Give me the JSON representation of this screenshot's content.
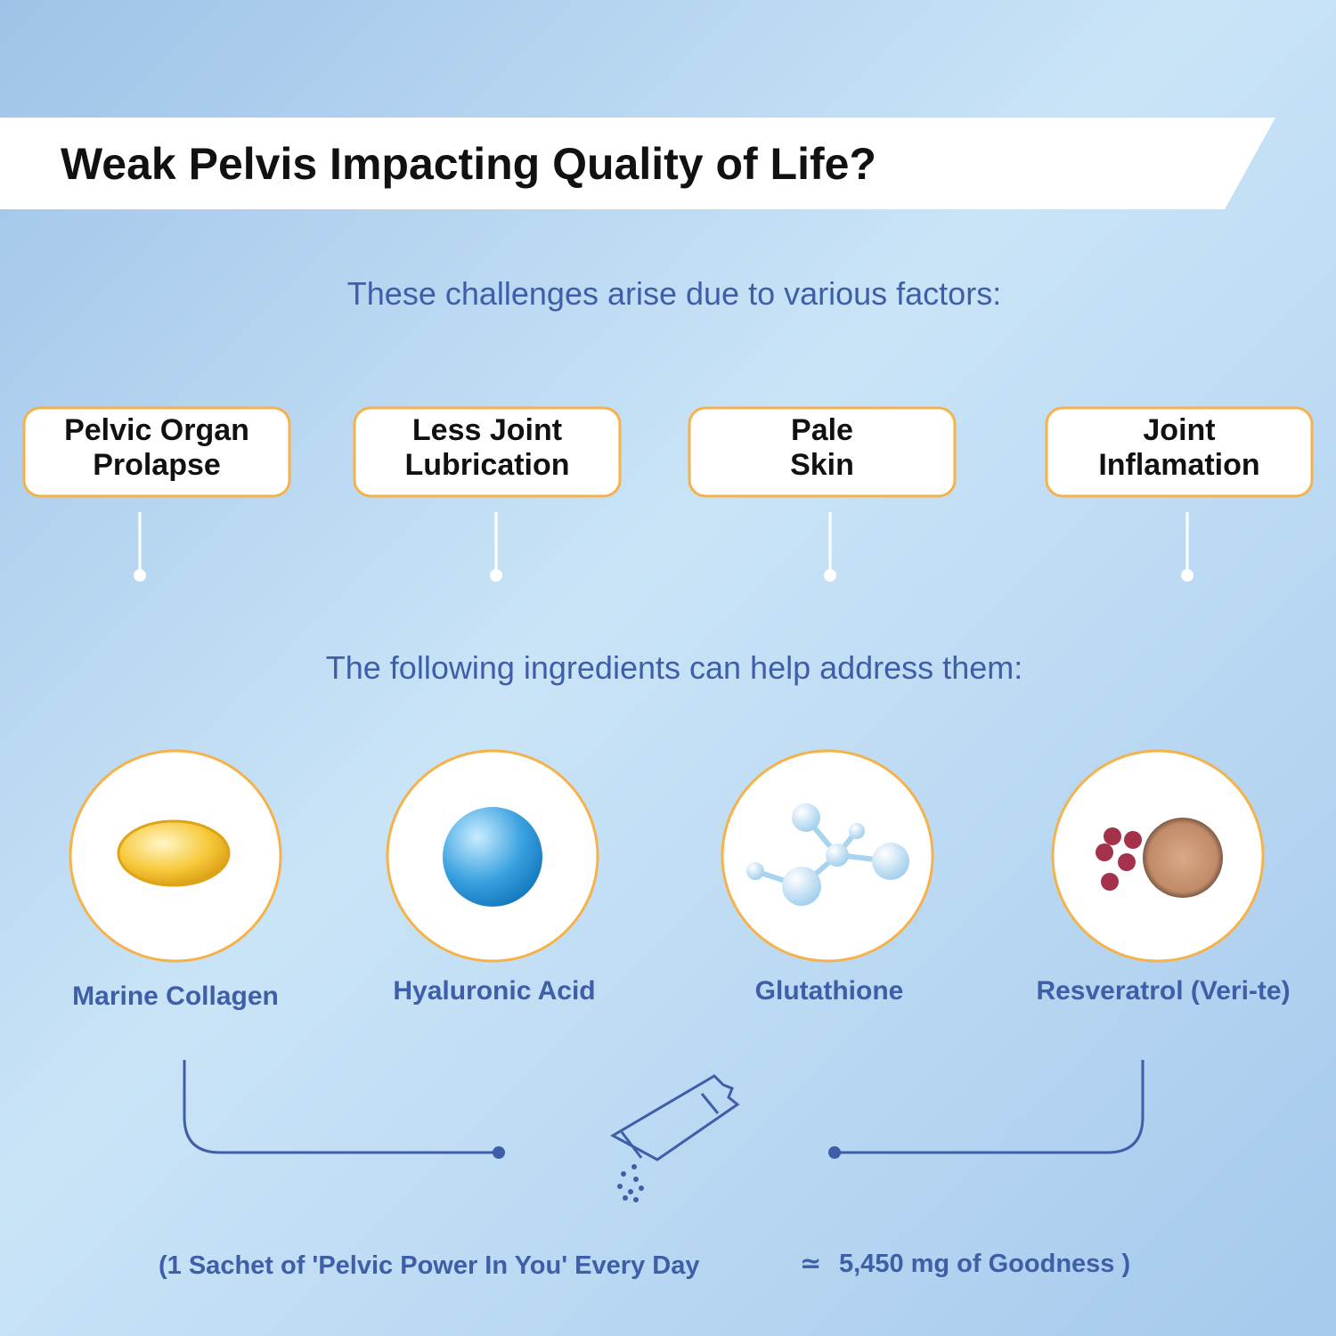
{
  "header": {
    "title": "Weak Pelvis Impacting Quality of Life?"
  },
  "challenges_intro": "These challenges arise due to various factors:",
  "challenges": [
    {
      "lines": [
        "Pelvic Organ",
        "Prolapse"
      ]
    },
    {
      "lines": [
        "Less Joint",
        "Lubrication"
      ]
    },
    {
      "lines": [
        "Pale",
        "Skin"
      ]
    },
    {
      "lines": [
        "Joint",
        "Inflamation"
      ]
    }
  ],
  "ingredients_intro": "The following ingredients can help address them:",
  "ingredients": [
    "Marine Collagen",
    "Hyaluronic Acid",
    "Glutathione",
    "Resveratrol (Veri-te)"
  ],
  "footer": {
    "left": "(1 Sachet of 'Pelvic Power In You' Every Day",
    "symbol": "≃",
    "right": "5,450 mg of Goodness )"
  }
}
